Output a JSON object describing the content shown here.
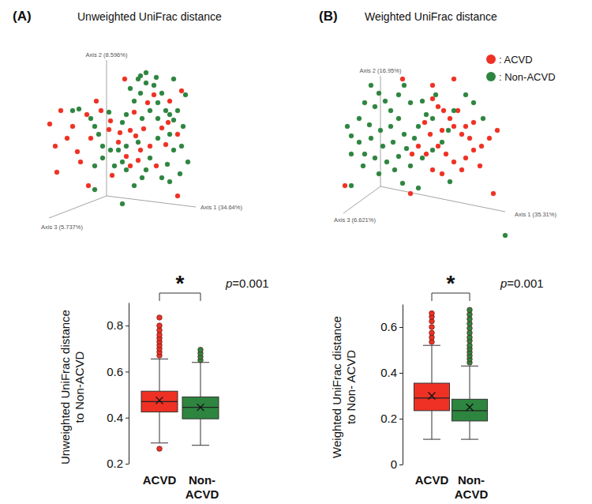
{
  "chart_data": [
    {
      "type": "scatter",
      "title": "Unweighted UniFrac distance",
      "annotations": [
        "(A)"
      ],
      "xlabel": "Axis 1 (34.64%)",
      "ylabel": "Axis 2 (8.596%)",
      "zlabel": "Axis 3 (5.737%)",
      "xlim": [
        0,
        100
      ],
      "ylim": [
        0,
        100
      ],
      "tick_labels": false,
      "series": [
        {
          "color": "#ee3124",
          "x": [
            6.5,
            13.5,
            21,
            17.5,
            10,
            24,
            11,
            26,
            32.5,
            30,
            36,
            39,
            31,
            45,
            51,
            50,
            55,
            57.5,
            61,
            66,
            64,
            70,
            74,
            77.5,
            81.5,
            80,
            87.5,
            68.5,
            72.5,
            82.5,
            90,
            60,
            54,
            57.5,
            46,
            87.5,
            44,
            62.5
          ],
          "y": [
            56.5,
            65,
            55,
            47.5,
            42.5,
            39,
            26,
            32.5,
            47.5,
            62.5,
            71,
            65,
            17.5,
            58.5,
            51,
            45,
            36,
            52.5,
            49,
            53.5,
            40,
            42.5,
            30,
            54,
            57.5,
            43.5,
            50,
            70,
            75,
            71,
            77.5,
            64,
            85,
            30,
            24,
            11,
            53,
            33.5
          ]
        },
        {
          "color": "#2e8540",
          "x": [
            57.5,
            62.5,
            67.5,
            64,
            60,
            72.5,
            75,
            77.5,
            70,
            65,
            55,
            52.5,
            75,
            80,
            82.5,
            85,
            87.5,
            91,
            82.5,
            75,
            70,
            67.5,
            55,
            52.5,
            45,
            50,
            40,
            35,
            37.5,
            85,
            90,
            94,
            89,
            82.5,
            77.5,
            65,
            60,
            25,
            21,
            44,
            35,
            40,
            92.5,
            67.5,
            64,
            74,
            35,
            52.5,
            85,
            81,
            62.5,
            55,
            47.5,
            32.5
          ],
          "y": [
            79,
            85,
            82.5,
            76,
            71,
            81,
            70,
            76,
            65,
            60,
            62.5,
            57.5,
            60,
            65,
            62.5,
            59,
            65,
            55,
            50,
            47.5,
            35,
            27.5,
            27.5,
            32.5,
            40,
            40,
            35,
            30,
            50,
            40,
            42.5,
            32.5,
            25,
            20,
            22.5,
            22.5,
            17.5,
            66,
            65,
            64,
            55,
            42.5,
            75,
            89,
            87,
            86,
            15,
            6,
            85,
            31,
            45,
            42.5,
            30,
            60
          ]
        }
      ]
    },
    {
      "type": "scatter",
      "title": "Weighted UniFrac distance",
      "annotations": [
        "(B)"
      ],
      "xlabel": "Axis 1 (35.31%)",
      "ylabel": "Axis 2 (16.95%)",
      "zlabel": "Axis 3 (6.621%)",
      "xlim": [
        0,
        100
      ],
      "ylim": [
        -20,
        100
      ],
      "tick_labels": false,
      "legend": "top-right",
      "series": [
        {
          "name": ": ACVD",
          "color": "#ee3124",
          "x": [
            59.2,
            62,
            64.8,
            68,
            70,
            74,
            78,
            64,
            58,
            62,
            66,
            70,
            76,
            80,
            84,
            88,
            92,
            80,
            72,
            56,
            52,
            48.8,
            48,
            59.2,
            64,
            74,
            83.2,
            90,
            14.8,
            44,
            59.2,
            70,
            76,
            55.2
          ],
          "y": [
            72.5,
            67.5,
            65,
            60,
            55,
            50,
            47.5,
            52.5,
            50,
            42.5,
            37.5,
            32.5,
            35,
            40,
            42.5,
            47.5,
            52.5,
            57.5,
            65,
            37.5,
            42.5,
            37.5,
            12.5,
            27.5,
            25,
            27.5,
            30,
            12.5,
            17.5,
            85,
            81,
            85,
            55,
            57.5
          ]
        },
        {
          "name": ": Non-ACVD",
          "color": "#2e8540",
          "x": [
            28,
            32,
            24.8,
            30,
            35.2,
            38,
            42,
            44.8,
            48,
            22,
            27.2,
            32.8,
            38,
            42,
            44.8,
            39.2,
            34,
            28,
            22,
            18,
            24.8,
            30,
            36,
            42,
            46,
            50,
            52,
            56,
            59.2,
            54,
            60.8,
            48,
            40,
            32,
            24,
            18,
            16,
            44,
            54,
            59.2,
            64,
            67.2,
            70,
            76,
            80,
            84.8,
            18,
            52,
            68,
            96
          ],
          "y": [
            81,
            76,
            70,
            67.5,
            71,
            65,
            75,
            81,
            70,
            60,
            56,
            52.5,
            55,
            60,
            50,
            45,
            42.5,
            47.5,
            45,
            49,
            37.5,
            35,
            32.5,
            36,
            41,
            47.5,
            55,
            62.5,
            60,
            71,
            75,
            30,
            27.5,
            25,
            30,
            37.5,
            55,
            19,
            35,
            40,
            45,
            52.5,
            65,
            75,
            70,
            60,
            17.5,
            16,
            20,
            -14
          ]
        }
      ]
    },
    {
      "type": "box",
      "ylabel": "Unweighted UniFrac distance to Non-ACVD",
      "categories": [
        "ACVD",
        "Non-ACVD"
      ],
      "colors": [
        "#ee3124",
        "#2e8540"
      ],
      "ylim": [
        0.2,
        0.9
      ],
      "yticks": [
        0.2,
        0.4,
        0.6,
        0.8
      ],
      "annotations": [
        "*",
        "p=0.001"
      ],
      "boxes": [
        {
          "whisker_low": 0.29,
          "q1": 0.425,
          "median": 0.47,
          "q3": 0.515,
          "whisker_high": 0.655,
          "mean": 0.475,
          "outliers": [
            0.265,
            0.67,
            0.685,
            0.7,
            0.715,
            0.73,
            0.745,
            0.76,
            0.78,
            0.8,
            0.835
          ]
        },
        {
          "whisker_low": 0.28,
          "q1": 0.395,
          "median": 0.445,
          "q3": 0.49,
          "whisker_high": 0.64,
          "mean": 0.445,
          "outliers": [
            0.65,
            0.665,
            0.68,
            0.695
          ]
        }
      ]
    },
    {
      "type": "box",
      "ylabel": "Weighted UniFrac distance to Non- ACVD",
      "categories": [
        "ACVD",
        "Non-ACVD"
      ],
      "colors": [
        "#ee3124",
        "#2e8540"
      ],
      "ylim": [
        0,
        0.7
      ],
      "yticks": [
        0,
        0.2,
        0.4,
        0.6
      ],
      "annotations": [
        "*",
        "p=0.001"
      ],
      "boxes": [
        {
          "whisker_low": 0.11,
          "q1": 0.235,
          "median": 0.29,
          "q3": 0.355,
          "whisker_high": 0.52,
          "mean": 0.3,
          "outliers": [
            0.535,
            0.555,
            0.575,
            0.6,
            0.625,
            0.645,
            0.66
          ]
        },
        {
          "whisker_low": 0.11,
          "q1": 0.19,
          "median": 0.235,
          "q3": 0.285,
          "whisker_high": 0.43,
          "mean": 0.25,
          "outliers": [
            0.445,
            0.46,
            0.475,
            0.49,
            0.505,
            0.52,
            0.54,
            0.555,
            0.575,
            0.595,
            0.615,
            0.635,
            0.655,
            0.675
          ]
        }
      ]
    }
  ]
}
